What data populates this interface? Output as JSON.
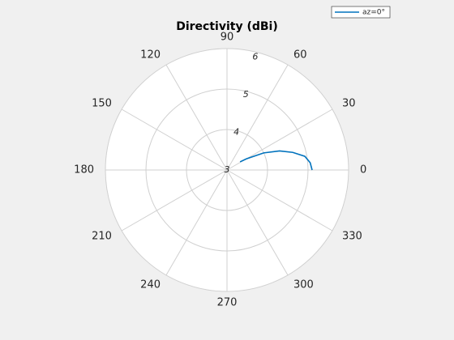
{
  "chart_data": {
    "type": "polar",
    "title": "Directivity (dBi)",
    "theta": [
      0,
      5,
      10,
      15,
      20,
      25,
      30,
      32
    ],
    "series": [
      {
        "name": "az=0°",
        "color": "#0072bd",
        "values": [
          5.1,
          5.06,
          4.95,
          4.68,
          4.38,
          4.0,
          3.55,
          3.38
        ]
      }
    ],
    "rlim": [
      3,
      6
    ],
    "rticks": [
      3,
      4,
      5,
      6
    ],
    "thetaticks": [
      0,
      30,
      60,
      90,
      120,
      150,
      180,
      210,
      240,
      270,
      300,
      330
    ],
    "grid": true,
    "legend": "top-right"
  }
}
